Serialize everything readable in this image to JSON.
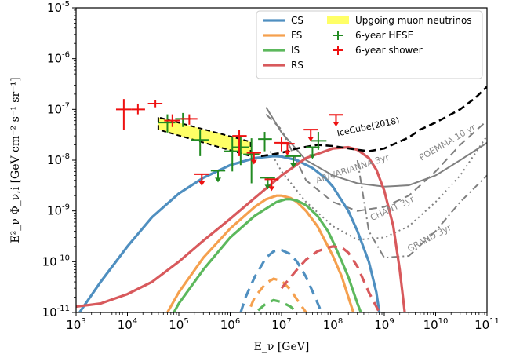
{
  "chart_data": {
    "type": "line",
    "xlabel": "E_ν [GeV]",
    "ylabel": "E²_ν Φ_ν,i [GeV cm⁻² s⁻¹ sr⁻¹]",
    "xscale": "log",
    "yscale": "log",
    "xlim": [
      1000,
      100000000000
    ],
    "ylim": [
      1e-11,
      1e-05
    ],
    "x_ticks": [
      {
        "base": "10",
        "exp": "3",
        "value": 1000
      },
      {
        "base": "10",
        "exp": "4",
        "value": 10000
      },
      {
        "base": "10",
        "exp": "5",
        "value": 100000
      },
      {
        "base": "10",
        "exp": "6",
        "value": 1000000
      },
      {
        "base": "10",
        "exp": "7",
        "value": 10000000
      },
      {
        "base": "10",
        "exp": "8",
        "value": 100000000
      },
      {
        "base": "10",
        "exp": "9",
        "value": 1000000000
      },
      {
        "base": "10",
        "exp": "10",
        "value": 10000000000
      },
      {
        "base": "10",
        "exp": "11",
        "value": 100000000000
      }
    ],
    "y_ticks": [
      {
        "base": "10",
        "exp": "-11",
        "value": 1e-11
      },
      {
        "base": "10",
        "exp": "-10",
        "value": 1e-10
      },
      {
        "base": "10",
        "exp": "-9",
        "value": 1e-09
      },
      {
        "base": "10",
        "exp": "-8",
        "value": 1e-08
      },
      {
        "base": "10",
        "exp": "-7",
        "value": 1e-07
      },
      {
        "base": "10",
        "exp": "-6",
        "value": 1e-06
      },
      {
        "base": "10",
        "exp": "-5",
        "value": 1e-05
      }
    ],
    "legend": {
      "placement": "top-right",
      "col1": [
        {
          "label": "CS",
          "color": "#4f8fc0"
        },
        {
          "label": "FS",
          "color": "#f5a04e"
        },
        {
          "label": "IS",
          "color": "#5cb85c"
        },
        {
          "label": "RS",
          "color": "#d8595c"
        }
      ],
      "col2": [
        {
          "label": "Upgoing muon neutrinos",
          "kind": "patch",
          "color": "#ffff66"
        },
        {
          "label": "6-year HESE",
          "kind": "cross",
          "color": "#228b22"
        },
        {
          "label": "6-year shower",
          "kind": "cross",
          "color": "#ee1111"
        }
      ]
    },
    "series": [
      {
        "name": "CS",
        "color": "#4f8fc0",
        "dash": "solid",
        "x": [
          1000,
          3000,
          10000,
          30000,
          100000,
          300000,
          1000000,
          3000000,
          7000000,
          10000000,
          20000000,
          40000000,
          70000000,
          100000000,
          200000000,
          300000000,
          500000000,
          700000000,
          800000000
        ],
        "y": [
          8e-12,
          4e-11,
          2e-10,
          7.5e-10,
          2.2e-09,
          4.5e-09,
          8e-09,
          1.1e-08,
          1.2e-08,
          1.18e-08,
          1e-08,
          7e-09,
          4.5e-09,
          3e-09,
          1e-09,
          4e-10,
          1e-10,
          2.5e-11,
          1e-11
        ]
      },
      {
        "name": "FS",
        "color": "#f5a04e",
        "dash": "solid",
        "x": [
          60000,
          100000,
          300000,
          1000000,
          3000000,
          5000000,
          8000000,
          10000000,
          15000000,
          20000000,
          30000000,
          50000000,
          80000000,
          100000000,
          150000000,
          200000000,
          250000000
        ],
        "y": [
          1e-11,
          2.5e-11,
          1.2e-10,
          4.5e-10,
          1.2e-09,
          1.7e-09,
          2e-09,
          2e-09,
          1.8e-09,
          1.5e-09,
          1e-09,
          5e-10,
          2e-10,
          1.3e-10,
          5e-11,
          2e-11,
          1e-11
        ]
      },
      {
        "name": "IS",
        "color": "#5cb85c",
        "dash": "solid",
        "x": [
          80000,
          100000,
          300000,
          1000000,
          3000000,
          8000000,
          12000000,
          15000000,
          20000000,
          30000000,
          50000000,
          80000000,
          100000000,
          150000000,
          200000000,
          300000000,
          350000000
        ],
        "y": [
          1e-11,
          1.5e-11,
          7e-11,
          3e-10,
          8e-10,
          1.5e-09,
          1.7e-09,
          1.7e-09,
          1.6e-09,
          1.3e-09,
          8e-10,
          4e-10,
          2.5e-10,
          1e-10,
          5e-11,
          1.5e-11,
          1e-11
        ]
      },
      {
        "name": "RS",
        "color": "#d8595c",
        "dash": "solid",
        "x": [
          1000,
          3000,
          10000,
          30000,
          100000,
          300000,
          1000000,
          3000000,
          10000000,
          30000000,
          100000000,
          200000000,
          300000000,
          500000000,
          700000000,
          1000000000,
          1500000000,
          2000000000,
          2500000000
        ],
        "y": [
          1.3e-11,
          1.5e-11,
          2.3e-11,
          4e-11,
          1e-10,
          2.6e-10,
          7e-10,
          1.8e-09,
          5e-09,
          1.1e-08,
          1.7e-08,
          1.8e-08,
          1.6e-08,
          1.1e-08,
          6.5e-09,
          2.5e-09,
          5e-10,
          7e-11,
          1e-11
        ]
      },
      {
        "name": "CS-dashed",
        "color": "#4f8fc0",
        "dash": "dashed",
        "x": [
          1600000,
          2000000,
          3000000,
          5000000,
          7000000,
          10000000,
          15000000,
          20000000,
          30000000,
          45000000,
          60000000
        ],
        "y": [
          1e-11,
          2e-11,
          5e-11,
          1.2e-10,
          1.6e-10,
          1.7e-10,
          1.4e-10,
          1e-10,
          5e-11,
          2e-11,
          1e-11
        ]
      },
      {
        "name": "FS-dashed",
        "color": "#f5a04e",
        "dash": "dashed",
        "x": [
          2500000,
          3000000,
          5000000,
          7000000,
          10000000,
          15000000,
          20000000,
          30000000
        ],
        "y": [
          1.3e-11,
          2e-11,
          3.8e-11,
          4.6e-11,
          4.2e-11,
          2.8e-11,
          1.8e-11,
          1e-11
        ]
      },
      {
        "name": "IS-dashed",
        "color": "#5cb85c",
        "dash": "dashed",
        "x": [
          3500000,
          5000000,
          7000000,
          10000000,
          15000000,
          20000000
        ],
        "y": [
          1.1e-11,
          1.5e-11,
          1.75e-11,
          1.6e-11,
          1.3e-11,
          1e-11
        ]
      },
      {
        "name": "RS-dashed",
        "color": "#d8595c",
        "dash": "dashed",
        "x": [
          10000000,
          20000000,
          30000000,
          50000000,
          80000000,
          100000000,
          150000000,
          200000000,
          300000000,
          500000000,
          700000000,
          800000000
        ],
        "y": [
          3e-11,
          7e-11,
          1.1e-10,
          1.6e-10,
          1.9e-10,
          2e-10,
          1.9e-10,
          1.5e-10,
          8e-11,
          2.5e-11,
          1.3e-11,
          1e-11
        ]
      }
    ],
    "upgoing_band": {
      "color": "#ffff66",
      "x": [
        40000,
        40000,
        2500000,
        2500000
      ],
      "y": [
        7e-08,
        4e-08,
        1.2e-08,
        2.3e-08
      ]
    },
    "icecube_line": {
      "color": "#000000",
      "x": [
        4000000,
        10000000,
        20000000,
        50000000,
        100000000,
        300000000,
        500000000,
        1000000000,
        3000000000,
        5000000000,
        10000000000,
        30000000000,
        60000000000,
        100000000000
      ],
      "y": [
        1.2e-08,
        1.4e-08,
        1.7e-08,
        2e-08,
        1.9e-08,
        1.6e-08,
        1.5e-08,
        1.7e-08,
        2.8e-08,
        4e-08,
        5.5e-08,
        1e-07,
        1.7e-07,
        2.8e-07
      ]
    },
    "gray_sensitivities": [
      {
        "name": "ARA/ARIANNA",
        "dash": "solid",
        "x": [
          5000000,
          10000000,
          30000000,
          100000000,
          300000000,
          1000000000,
          3000000000,
          10000000000,
          30000000000,
          100000000000
        ],
        "y": [
          1.1e-07,
          3.5e-08,
          1e-08,
          5e-09,
          3.5e-09,
          3e-09,
          3.2e-09,
          5e-09,
          1e-08,
          2.2e-08
        ]
      },
      {
        "name": "POEMMA",
        "dash": "dashed",
        "x": [
          5000000,
          10000000,
          30000000,
          100000000,
          300000000,
          1000000000,
          3000000000,
          10000000000,
          30000000000,
          100000000000
        ],
        "y": [
          8e-08,
          4e-08,
          4e-09,
          1.5e-09,
          1e-09,
          1.2e-09,
          2e-09,
          6e-09,
          2e-08,
          6e-08
        ]
      },
      {
        "name": "CHANT",
        "dash": "dotted",
        "x": [
          6000000,
          10000000,
          30000000,
          100000000,
          300000000,
          1000000000,
          3000000000,
          10000000000,
          30000000000,
          100000000000
        ],
        "y": [
          1.5e-08,
          6e-09,
          1.5e-09,
          5e-10,
          2.7e-10,
          3e-10,
          5e-10,
          1.5e-09,
          5e-09,
          3e-08
        ]
      },
      {
        "name": "GRAND",
        "dash": "dashdot",
        "x": [
          300000000,
          500000000,
          1000000000,
          3000000000,
          10000000000,
          30000000000,
          100000000000
        ],
        "y": [
          1e-08,
          4e-10,
          1.2e-10,
          1.3e-10,
          4e-10,
          1.5e-09,
          5e-09
        ]
      }
    ],
    "annotations": [
      {
        "text": "IceCube(2018)",
        "color": "#000000",
        "x": 500000000,
        "y": 4e-08,
        "angle": -12
      },
      {
        "text": "POEMMA 10 yr",
        "color": "#888888",
        "x": 18000000000,
        "y": 2e-08,
        "angle": -30
      },
      {
        "text": "ARA/ARIANNA 3yr",
        "color": "#888888",
        "x": 250000000,
        "y": 6e-09,
        "angle": -18
      },
      {
        "text": "CHANT 3yr",
        "color": "#888888",
        "x": 1500000000,
        "y": 1e-09,
        "angle": -25
      },
      {
        "text": "GRAND 3yr",
        "color": "#888888",
        "x": 8000000000,
        "y": 2.6e-10,
        "angle": -28
      }
    ],
    "hese_points": {
      "color": "#228b22",
      "points": [
        {
          "x": 60000,
          "y": 5.5e-08,
          "xlo": 40000,
          "xhi": 85000,
          "ylo": 3.5e-08,
          "yhi": 8e-08
        },
        {
          "x": 120000,
          "y": 6.5e-08,
          "xlo": 85000,
          "xhi": 170000,
          "ylo": 4.5e-08,
          "yhi": 8.5e-08
        },
        {
          "x": 260000,
          "y": 2.5e-08,
          "xlo": 170000,
          "xhi": 380000,
          "ylo": 1.2e-08,
          "yhi": 4e-08
        },
        {
          "x": 1100000,
          "y": 1.5e-08,
          "xlo": 750000,
          "xhi": 1600000,
          "ylo": 6e-09,
          "yhi": 2.8e-08
        },
        {
          "x": 1600000,
          "y": 1.8e-08,
          "xlo": 1100000,
          "xhi": 2300000,
          "ylo": 8e-09,
          "yhi": 3e-08
        },
        {
          "x": 2600000,
          "y": 1.3e-08,
          "xlo": 1800000,
          "xhi": 3700000,
          "ylo": 3.5e-09,
          "yhi": 2.7e-08
        },
        {
          "x": 4700000,
          "y": 2.6e-08,
          "xlo": 3500000,
          "xhi": 6500000,
          "ylo": 1.5e-08,
          "yhi": 3.6e-08
        },
        {
          "x": 52000000,
          "y": 2.4e-08,
          "xlo": 38000000,
          "xhi": 75000000,
          "ylo": 1.6e-08,
          "yhi": 3.6e-08
        }
      ],
      "upper_limits": [
        {
          "x": 580000,
          "y": 6.2e-09,
          "xlo": 420000,
          "xhi": 800000
        },
        {
          "x": 5400000,
          "y": 4.5e-09,
          "xlo": 3800000,
          "xhi": 7500000
        },
        {
          "x": 17000000,
          "y": 1.2e-08,
          "xlo": 12000000,
          "xhi": 24000000
        },
        {
          "x": 40000000,
          "y": 1.8e-08,
          "xlo": 30000000,
          "xhi": 55000000
        }
      ]
    },
    "shower_points": {
      "color": "#ee1111",
      "points": [
        {
          "x": 8500,
          "y": 1e-07,
          "xlo": 6000,
          "xhi": 12000,
          "ylo": 4e-08,
          "yhi": 1.6e-07
        },
        {
          "x": 16000,
          "y": 1e-07,
          "xlo": 12000,
          "xhi": 22000,
          "ylo": 8e-08,
          "yhi": 1.3e-07
        },
        {
          "x": 35000,
          "y": 1.3e-07,
          "xlo": 25000,
          "xhi": 48000,
          "ylo": 1.1e-07,
          "yhi": 1.5e-07
        },
        {
          "x": 75000,
          "y": 6e-08,
          "xlo": 52000,
          "xhi": 105000,
          "ylo": 4.5e-08,
          "yhi": 8e-08
        },
        {
          "x": 160000,
          "y": 6.5e-08,
          "xlo": 110000,
          "xhi": 230000,
          "ylo": 5e-08,
          "yhi": 8e-08
        },
        {
          "x": 1500000,
          "y": 3e-08,
          "xlo": 1100000,
          "xhi": 2100000,
          "ylo": 1.2e-08,
          "yhi": 4e-08
        },
        {
          "x": 10000000,
          "y": 2.2e-08,
          "xlo": 7300000,
          "xhi": 14000000,
          "ylo": 1.5e-08,
          "yhi": 2.8e-08
        }
      ],
      "upper_limits": [
        {
          "x": 280000,
          "y": 5.3e-09,
          "xlo": 200000,
          "xhi": 390000
        },
        {
          "x": 2900000,
          "y": 1.4e-08,
          "xlo": 2100000,
          "xhi": 4000000
        },
        {
          "x": 6400000,
          "y": 4.2e-09,
          "xlo": 4700000,
          "xhi": 8800000
        },
        {
          "x": 13000000,
          "y": 2.1e-08,
          "xlo": 9500000,
          "xhi": 18000000
        },
        {
          "x": 37000000,
          "y": 4e-08,
          "xlo": 27000000,
          "xhi": 51000000
        },
        {
          "x": 115000000,
          "y": 7.8e-08,
          "xlo": 85000000,
          "xhi": 160000000
        }
      ]
    }
  }
}
